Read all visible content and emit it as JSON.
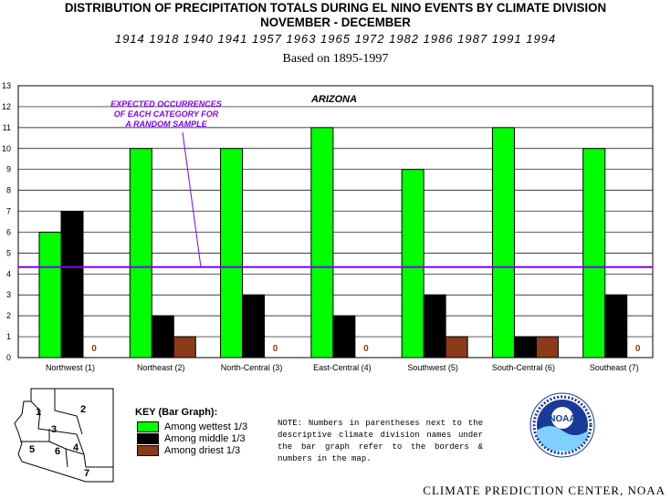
{
  "header": {
    "title_line1": "DISTRIBUTION OF PRECIPITATION TOTALS DURING EL NINO EVENTS BY CLIMATE DIVISION",
    "title_line2": "NOVEMBER - DECEMBER",
    "years": "1914 1918 1940 1941 1957 1963 1965 1972 1982 1986 1987 1991 1994",
    "basis": "Based on 1895-1997"
  },
  "chart_data": {
    "type": "bar",
    "title": "ARIZONA",
    "categories": [
      "Northwest (1)",
      "Northeast (2)",
      "North-Central (3)",
      "East-Central (4)",
      "Southwest (5)",
      "South-Central (6)",
      "Southeast (7)"
    ],
    "series": [
      {
        "name": "Among wettest 1/3",
        "color": "#00ff00",
        "values": [
          6,
          10,
          10,
          11,
          9,
          11,
          10
        ]
      },
      {
        "name": "Among middle 1/3",
        "color": "#000000",
        "values": [
          7,
          2,
          3,
          2,
          3,
          1,
          3
        ]
      },
      {
        "name": "Among driest 1/3",
        "color": "#8b3a1a",
        "values": [
          0,
          1,
          0,
          0,
          1,
          1,
          0
        ]
      }
    ],
    "yticks": [
      0,
      1,
      2,
      3,
      4,
      5,
      6,
      7,
      8,
      9,
      10,
      11,
      12,
      13
    ],
    "ylim": [
      0,
      13
    ],
    "grid": true,
    "zero_label": "0",
    "reference_line": {
      "value": 4.33,
      "color": "#7f00ff",
      "label_lines": [
        "EXPECTED OCCURRENCES",
        "OF EACH CATEGORY FOR",
        "A RANDOM SAMPLE"
      ]
    }
  },
  "key": {
    "title": "KEY (Bar Graph):",
    "items": [
      {
        "label": "Among wettest 1/3",
        "color": "#00ff00"
      },
      {
        "label": "Among middle 1/3",
        "color": "#000000"
      },
      {
        "label": "Among driest 1/3",
        "color": "#8b3a1a"
      }
    ]
  },
  "note": "NOTE: Numbers in parentheses next to the descriptive climate division names under the bar graph refer to the borders & numbers in the map.",
  "map": {
    "division_numbers": [
      "1",
      "2",
      "3",
      "4",
      "5",
      "6",
      "7"
    ]
  },
  "logo": {
    "text": "NOAA"
  },
  "footer": "CLIMATE PREDICTION CENTER, NOAA"
}
